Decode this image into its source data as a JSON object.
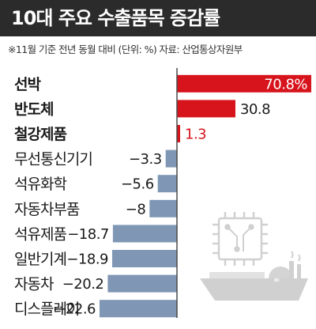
{
  "title": "10대 주요 수출품목 증감률",
  "note": "※11월 기준 전년 동월 대비 (단위: %) 자료: 산업통상자원부",
  "colors": {
    "positive": "#d7141c",
    "negative": "#7f97b4",
    "axis": "#4a4a4a",
    "illustration": "#d0d0d0"
  },
  "icons": [
    "semiconductor-chip-icon",
    "ship-icon"
  ],
  "chart_data": {
    "type": "bar",
    "orientation": "horizontal",
    "unit": "%",
    "categories": [
      "선박",
      "반도체",
      "철강제품",
      "무선통신기기",
      "석유화학",
      "자동차부품",
      "석유제품",
      "일반기계",
      "자동차",
      "디스플레이"
    ],
    "values": [
      70.8,
      30.8,
      1.3,
      -3.3,
      -5.6,
      -8,
      -18.7,
      -18.9,
      -20.2,
      -22.6
    ],
    "value_labels": [
      "70.8%",
      "30.8",
      "1.3",
      "−3.3",
      "−5.6",
      "−8",
      "−18.7",
      "−18.9",
      "−20.2",
      "−22.6"
    ],
    "bold_categories": [
      "선박",
      "반도체",
      "철강제품"
    ]
  }
}
